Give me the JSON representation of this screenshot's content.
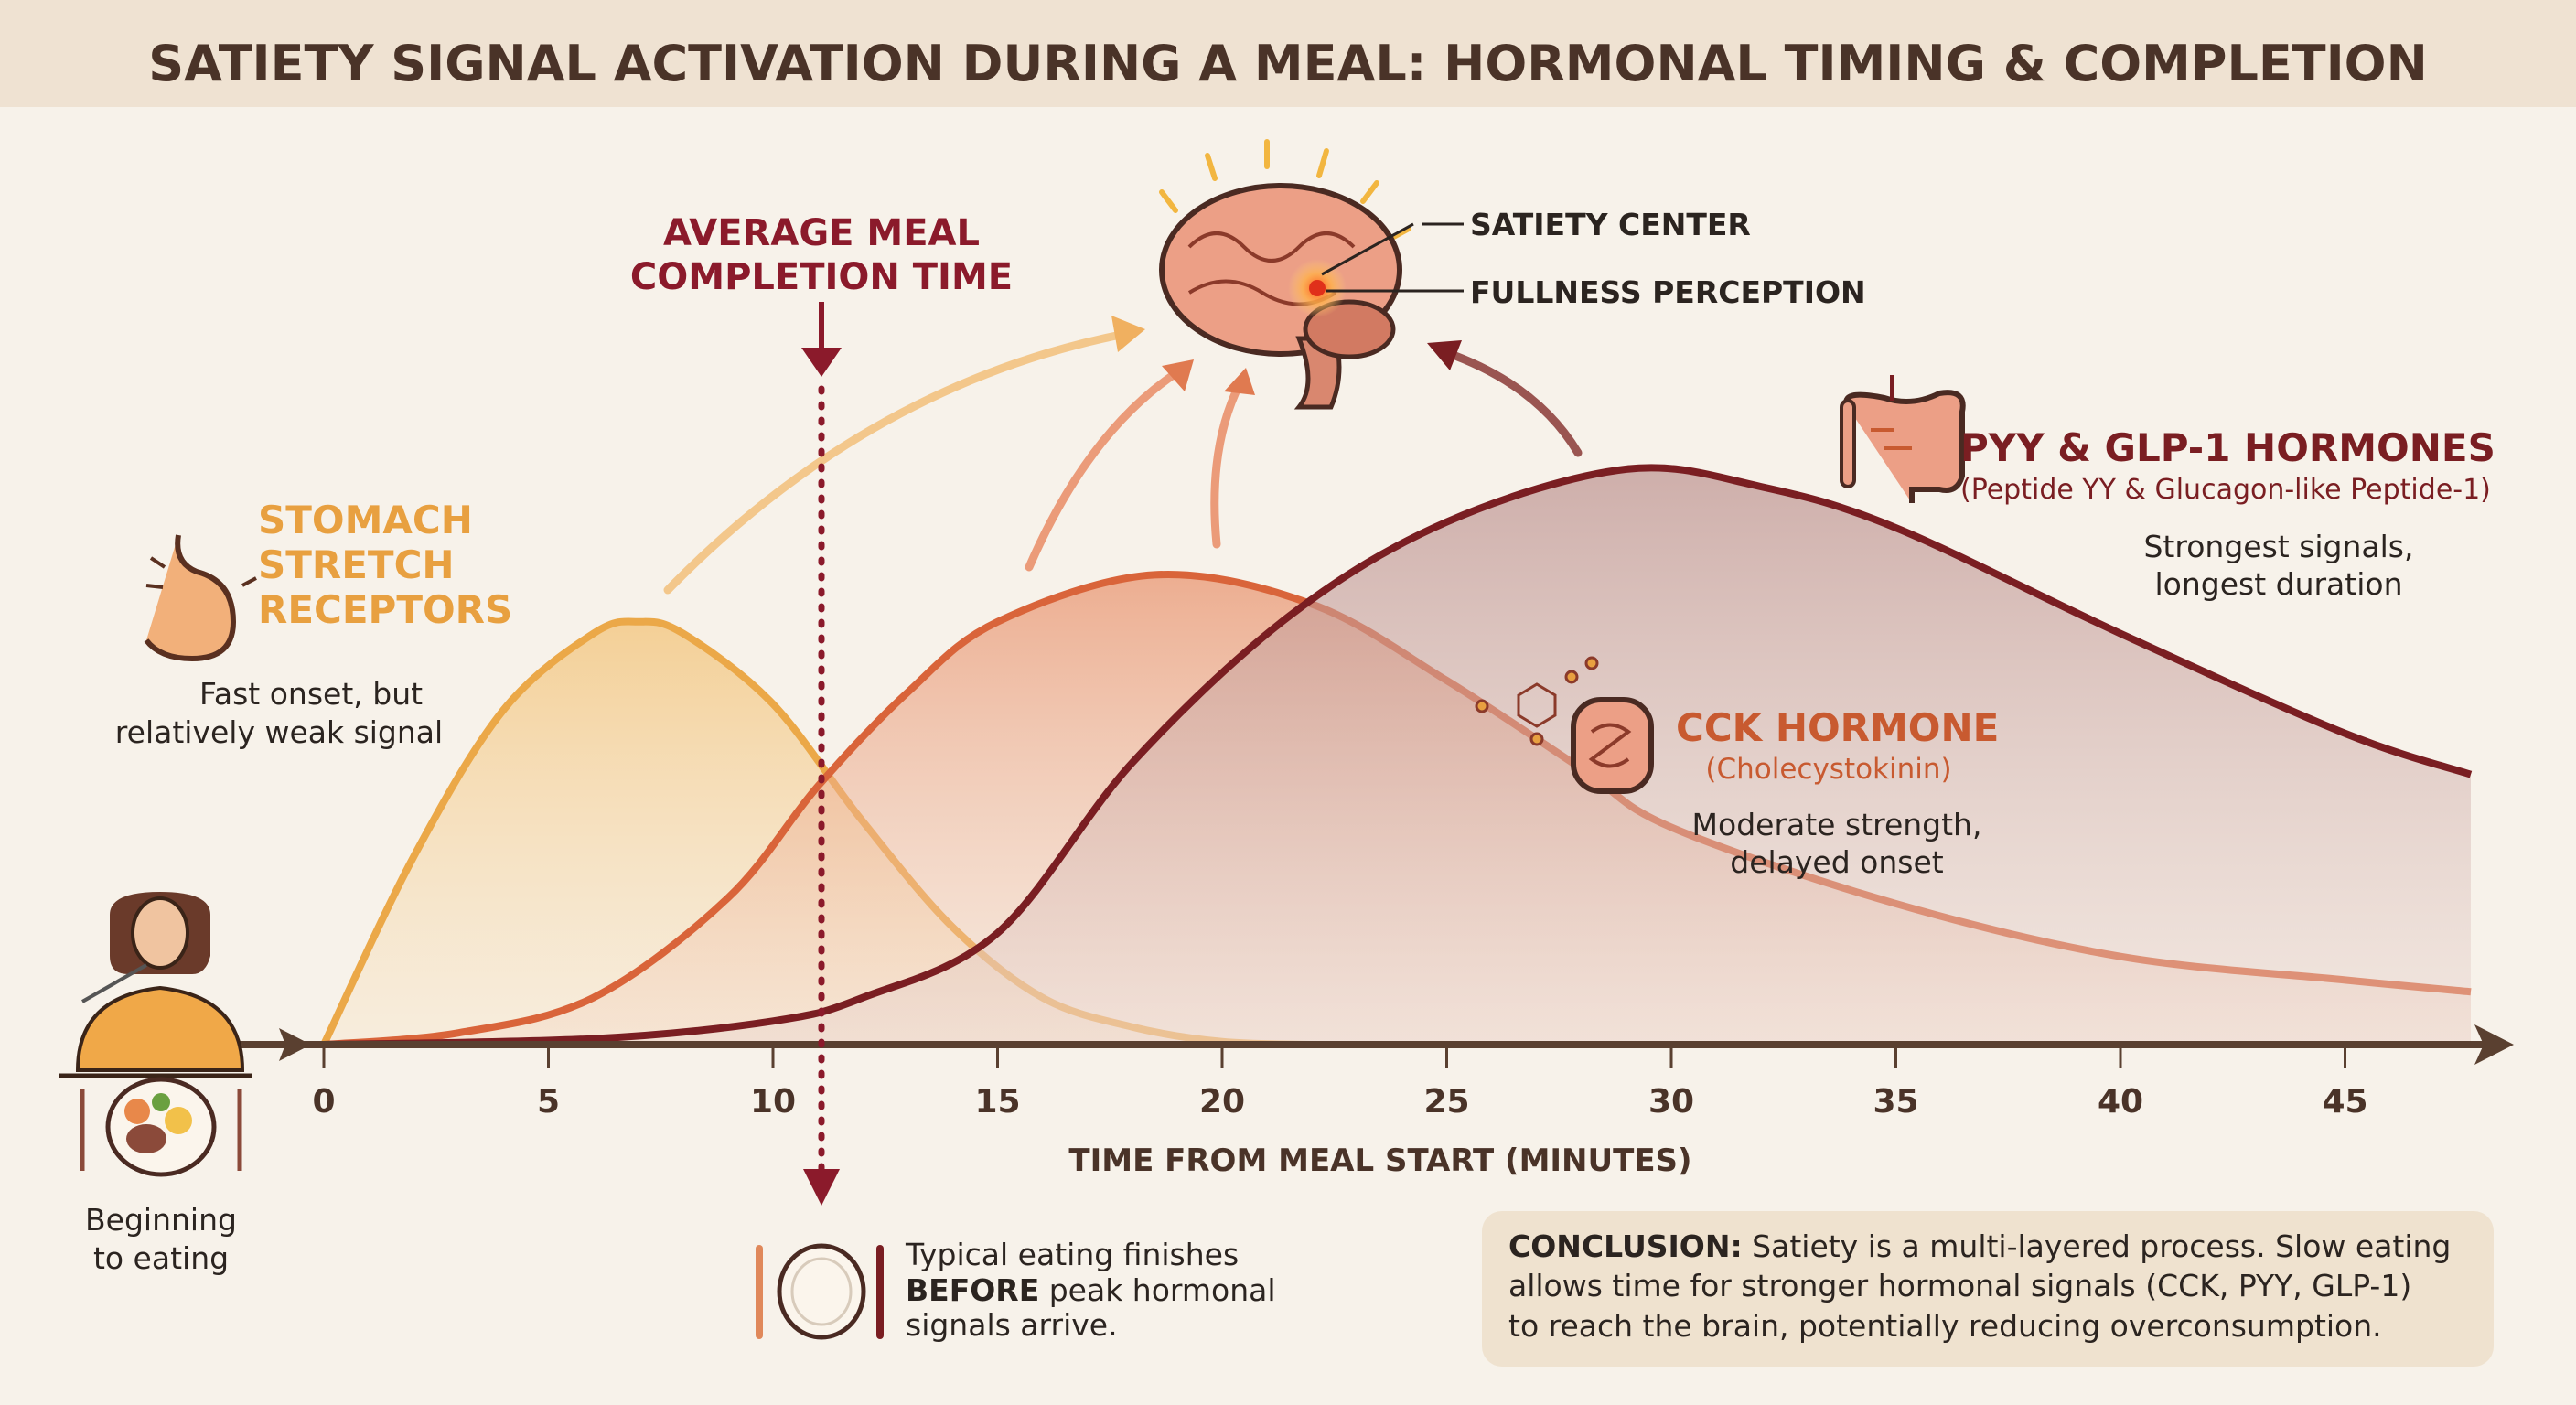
{
  "title": "SATIETY SIGNAL ACTIVATION DURING A MEAL: HORMONAL TIMING & COMPLETION",
  "colors": {
    "stomach": "#eba848",
    "cck": "#d9643a",
    "pyy": "#7a1e22",
    "marker": "#8b1a2b",
    "background": "#f7f2ea",
    "title_band": "#efe2d2"
  },
  "chart_data": {
    "type": "area",
    "title": "SATIETY SIGNAL ACTIVATION DURING A MEAL: HORMONAL TIMING & COMPLETION",
    "xlabel": "TIME FROM MEAL START (MINUTES)",
    "ylabel": "",
    "xlim": [
      0,
      48
    ],
    "ylim": [
      0,
      100
    ],
    "x_ticks": [
      "0",
      "5",
      "10",
      "15",
      "20",
      "25",
      "30",
      "35",
      "40",
      "45"
    ],
    "grid": false,
    "y_axis_shown": false,
    "series": [
      {
        "name": "STOMACH STRETCH RECEPTORS",
        "color": "#eba848",
        "x": [
          0,
          2,
          4,
          6,
          7,
          8,
          10,
          12,
          14,
          16,
          18,
          20,
          22
        ],
        "y": [
          0,
          32,
          57,
          70,
          72,
          70,
          58,
          38,
          20,
          8,
          3,
          0.5,
          0
        ]
      },
      {
        "name": "CCK HORMONE",
        "color": "#d9643a",
        "x": [
          0,
          3,
          6,
          9,
          11,
          13,
          15,
          18.5,
          22,
          25,
          28,
          30,
          35,
          40,
          45,
          47.8
        ],
        "y": [
          0,
          2,
          8,
          25,
          44,
          60,
          72,
          80,
          75,
          62,
          47,
          37,
          24,
          15,
          11,
          9
        ]
      },
      {
        "name": "PYY & GLP-1 HORMONES",
        "color": "#7a1e22",
        "x": [
          0,
          6,
          10,
          12,
          15,
          18,
          21.5,
          25,
          29,
          32,
          35,
          40,
          45,
          47.8
        ],
        "y": [
          0,
          1,
          4,
          8,
          19,
          48,
          73,
          89,
          98,
          95,
          88,
          70,
          53,
          46
        ]
      }
    ],
    "markers": [
      {
        "label": "AVERAGE MEAL COMPLETION TIME",
        "x": 11
      }
    ]
  },
  "marker_label": [
    "AVERAGE MEAL",
    "COMPLETION TIME"
  ],
  "brain": {
    "satiety_center": "SATIETY CENTER",
    "fullness": "FULLNESS PERCEPTION"
  },
  "stomach": {
    "title": [
      "STOMACH",
      "STRETCH",
      "RECEPTORS"
    ],
    "desc": [
      "Fast onset, but",
      "relatively weak signal"
    ]
  },
  "cck": {
    "title": "CCK HORMONE",
    "subtitle": "(Cholecystokinin)",
    "desc": [
      "Moderate strength,",
      "delayed onset"
    ]
  },
  "pyy": {
    "title": "PYY & GLP-1 HORMONES",
    "subtitle": "(Peptide YY & Glucagon-like Peptide-1)",
    "desc": [
      "Strongest signals,",
      "longest duration"
    ]
  },
  "start": {
    "label": [
      "Beginning",
      "to eating"
    ]
  },
  "finish_note": {
    "bold": "BEFORE",
    "line1": "Typical eating finishes",
    "line2_rest": " peak hormonal",
    "line3": "signals arrive."
  },
  "conclusion": {
    "bold": "CONCLUSION:",
    "line1_rest": " Satiety is a multi-layered process. Slow eating",
    "line2": "allows time for stronger hormonal signals (CCK, PYY, GLP-1)",
    "line3": "to reach the brain, potentially reducing overconsumption."
  }
}
